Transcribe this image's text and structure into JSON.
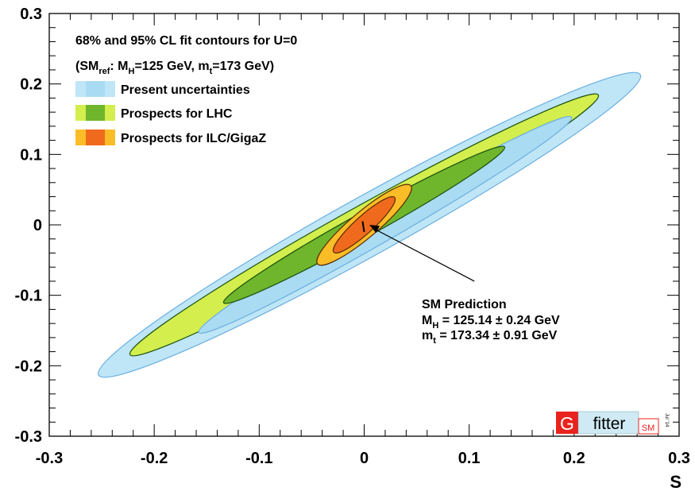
{
  "chart_data": {
    "type": "contour",
    "title": "68% and 95% CL fit contours for U=0",
    "subtitle": {
      "prefix": "(SM",
      "ref_sub": "ref",
      "mid1": ": M",
      "h_sub": "H",
      "mid2": "=125 GeV, m",
      "t_sub": "t",
      "tail": "=173 GeV)"
    },
    "xlabel": "S",
    "ylabel": "",
    "xlim": [
      -0.3,
      0.3
    ],
    "ylim": [
      -0.3,
      0.3
    ],
    "xticks": [
      -0.3,
      -0.2,
      -0.1,
      0,
      0.1,
      0.2,
      0.3
    ],
    "yticks": [
      -0.3,
      -0.2,
      -0.1,
      0,
      0.1,
      0.2,
      0.3
    ],
    "xtick_labels": [
      "-0.3",
      "-0.2",
      "-0.1",
      "0",
      "0.1",
      "0.2",
      "0.3"
    ],
    "ytick_labels": [
      "-0.3",
      "-0.2",
      "-0.1",
      "0",
      "0.1",
      "0.2",
      "0.3"
    ],
    "legend_position": "top-left",
    "series": [
      {
        "name": "Present uncertainties",
        "color95": "#bfe6f6",
        "color68": "#a9dbf2",
        "edge": "#6aaee0",
        "contours": [
          {
            "level": "95%",
            "cx": 0.005,
            "cy": 0.0,
            "rx": 0.295,
            "ry": 0.028,
            "angle_deg": 29
          },
          {
            "level": "68%",
            "cx": 0.02,
            "cy": 0.0,
            "rx": 0.205,
            "ry": 0.014,
            "angle_deg": 30
          }
        ]
      },
      {
        "name": "Prospects for LHC",
        "color95": "#d3ee4d",
        "color68": "#6fb62c",
        "edge": "#1a4f10",
        "contours": [
          {
            "level": "95%",
            "cx": 0.0,
            "cy": 0.0,
            "rx": 0.255,
            "ry": 0.0185,
            "angle_deg": 29
          },
          {
            "level": "68%",
            "cx": 0.0,
            "cy": 0.0,
            "rx": 0.153,
            "ry": 0.0115,
            "angle_deg": 29
          }
        ]
      },
      {
        "name": "Prospects for ILC/GigaZ",
        "color95": "#fbbd27",
        "color68": "#ef6a1c",
        "edge": "#5a2a05",
        "contours": [
          {
            "level": "95%",
            "cx": 0.0,
            "cy": 0.0,
            "rx": 0.058,
            "ry": 0.0125,
            "angle_deg": 40
          },
          {
            "level": "68%",
            "cx": 0.0,
            "cy": 0.0,
            "rx": 0.039,
            "ry": 0.0085,
            "angle_deg": 42
          }
        ]
      }
    ],
    "sm_prediction": {
      "x": 0.0,
      "y_range": [
        -0.01,
        0.005
      ],
      "point": [
        0.005,
        0.0
      ],
      "label": "SM Prediction",
      "line1": {
        "name": "M",
        "sub": "H",
        "value": " = 125.14  ± 0.24 GeV"
      },
      "line2": {
        "name": "m",
        "sub": "t",
        "value": " = 173.34  ± 0.91 GeV"
      },
      "arrow_tail": [
        0.105,
        -0.08
      ]
    },
    "logo": {
      "g": "G",
      "fitter": "fitter",
      "sm": "SM",
      "date": "Jul '14"
    }
  }
}
